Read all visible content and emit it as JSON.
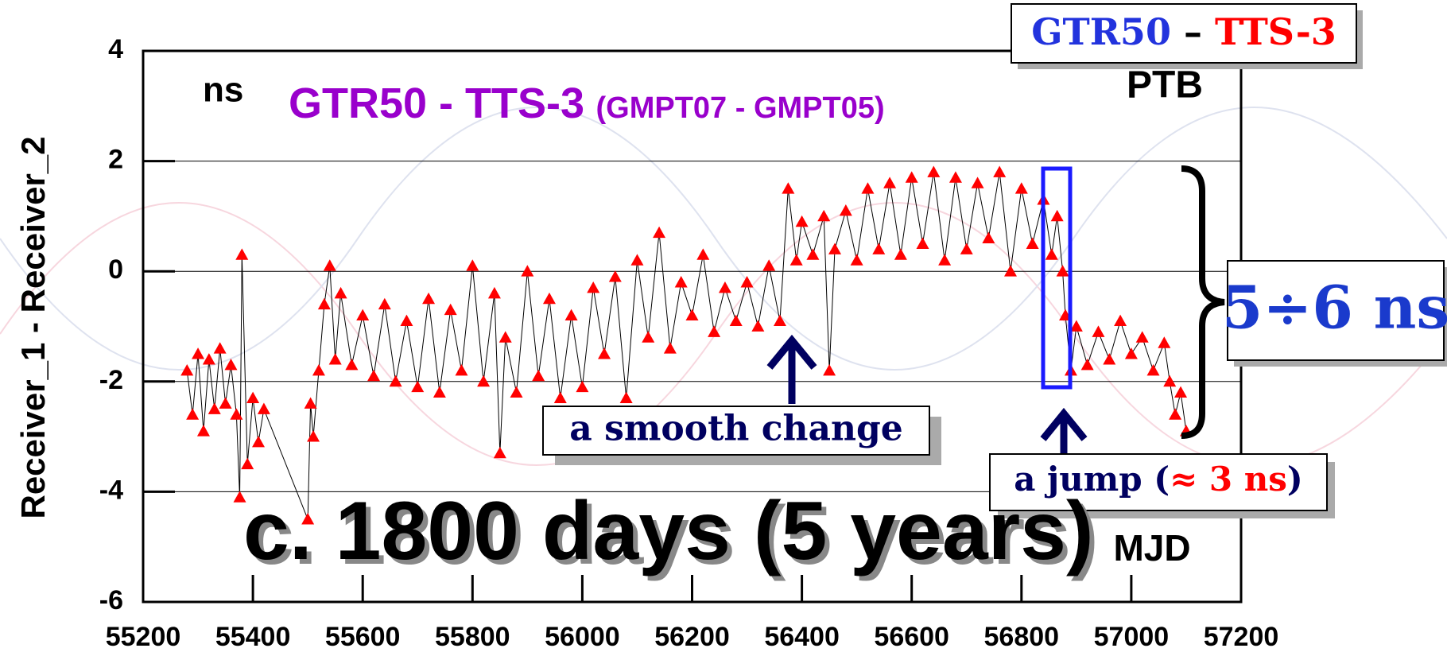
{
  "chart_data": {
    "type": "scatter",
    "title": "GTR50 - TTS-3",
    "subtitle": "(GMPT07 - GMPT05)",
    "y_label": "Receiver_1 - Receiver_2",
    "x_label": "MJD",
    "unit": "ns",
    "lab": "PTB",
    "legend": [
      "GTR50",
      "–",
      "TTS-3"
    ],
    "annotations": {
      "smooth": "a smooth change",
      "jump": [
        "a jump (",
        "≈ 3 ns",
        ")"
      ],
      "range": "5÷6 ns",
      "span": "c. 1800 days (5 years)"
    },
    "xlim": [
      55200,
      57200
    ],
    "xticks": [
      55200,
      55400,
      55600,
      55800,
      56000,
      56200,
      56400,
      56600,
      56800,
      57000,
      57200
    ],
    "ylim": [
      -6,
      4
    ],
    "yticks": [
      -6,
      -4,
      -2,
      0,
      2,
      4
    ],
    "grid": true,
    "color": "#ff0000",
    "line_color": "#000000",
    "x": [
      55280,
      55290,
      55300,
      55310,
      55320,
      55330,
      55340,
      55350,
      55360,
      55370,
      55376,
      55380,
      55390,
      55400,
      55410,
      55420,
      55500,
      55505,
      55510,
      55520,
      55530,
      55540,
      55550,
      55560,
      55580,
      55600,
      55620,
      55640,
      55660,
      55680,
      55700,
      55720,
      55740,
      55760,
      55780,
      55800,
      55820,
      55840,
      55850,
      55860,
      55880,
      55900,
      55920,
      55940,
      55960,
      55980,
      56000,
      56020,
      56040,
      56060,
      56080,
      56100,
      56120,
      56140,
      56160,
      56180,
      56200,
      56220,
      56240,
      56260,
      56280,
      56300,
      56320,
      56340,
      56360,
      56375,
      56390,
      56400,
      56420,
      56440,
      56450,
      56460,
      56480,
      56500,
      56520,
      56540,
      56560,
      56580,
      56600,
      56620,
      56640,
      56660,
      56680,
      56700,
      56720,
      56740,
      56760,
      56780,
      56800,
      56820,
      56840,
      56855,
      56865,
      56875,
      56880,
      56890,
      56900,
      56920,
      56940,
      56960,
      56980,
      57000,
      57020,
      57040,
      57060,
      57070,
      57080,
      57090,
      57100
    ],
    "values": [
      -1.8,
      -2.6,
      -1.5,
      -2.9,
      -1.6,
      -2.5,
      -1.4,
      -2.4,
      -1.7,
      -2.6,
      -4.1,
      0.3,
      -3.5,
      -2.3,
      -3.1,
      -2.5,
      -4.5,
      -2.4,
      -3.0,
      -1.8,
      -0.6,
      0.1,
      -1.6,
      -0.4,
      -1.7,
      -0.8,
      -1.9,
      -0.6,
      -2.0,
      -0.9,
      -2.1,
      -0.5,
      -2.2,
      -0.7,
      -1.8,
      0.1,
      -2.0,
      -0.4,
      -3.3,
      -1.2,
      -2.2,
      0.0,
      -1.9,
      -0.5,
      -2.3,
      -0.8,
      -2.1,
      -0.3,
      -1.5,
      -0.1,
      -2.3,
      0.2,
      -1.2,
      0.7,
      -1.4,
      -0.2,
      -0.8,
      0.3,
      -1.1,
      -0.3,
      -0.9,
      -0.2,
      -1.0,
      0.1,
      -0.9,
      1.5,
      0.2,
      0.9,
      0.3,
      1.0,
      -1.8,
      0.4,
      1.1,
      0.2,
      1.5,
      0.4,
      1.6,
      0.3,
      1.7,
      0.5,
      1.8,
      0.2,
      1.7,
      0.4,
      1.6,
      0.6,
      1.8,
      0.0,
      1.5,
      0.5,
      1.3,
      0.3,
      1.0,
      0.0,
      -0.8,
      -1.8,
      -1.0,
      -1.7,
      -1.1,
      -1.6,
      -0.9,
      -1.5,
      -1.2,
      -1.8,
      -1.3,
      -2.0,
      -2.6,
      -2.2,
      -2.9
    ]
  }
}
